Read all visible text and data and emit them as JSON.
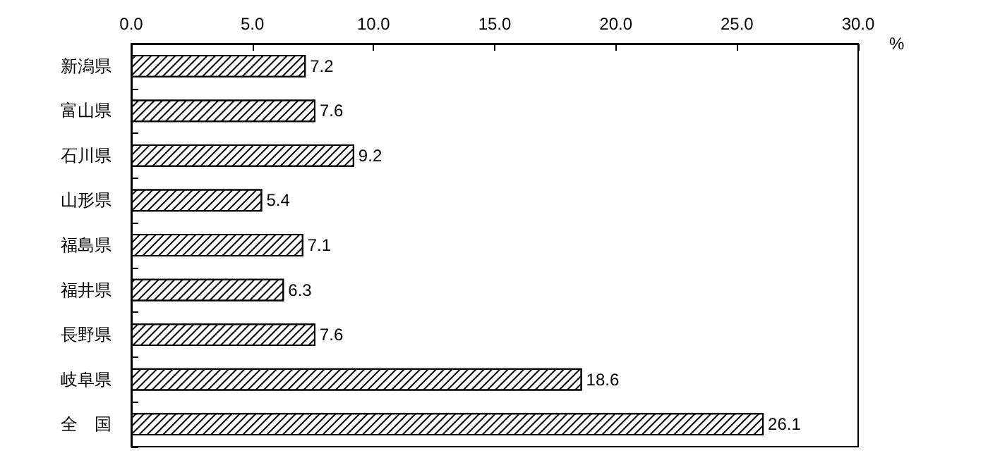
{
  "chart_data": {
    "type": "bar",
    "orientation": "horizontal",
    "xlabel": "%",
    "categories": [
      "新潟県",
      "富山県",
      "石川県",
      "山形県",
      "福島県",
      "福井県",
      "長野県",
      "岐阜県",
      "全　国"
    ],
    "values": [
      7.2,
      7.6,
      9.2,
      5.4,
      7.1,
      6.3,
      7.6,
      18.6,
      26.1
    ],
    "color": "#000000",
    "xlim": [
      0,
      30
    ],
    "xticks": [
      {
        "value": 0,
        "label": "0.0"
      },
      {
        "value": 5,
        "label": "5.0"
      },
      {
        "value": 10,
        "label": "10.0"
      },
      {
        "value": 15,
        "label": "15.0"
      },
      {
        "value": 20,
        "label": "20.0"
      },
      {
        "value": 25,
        "label": "25.0"
      },
      {
        "value": 30,
        "label": "30.0"
      }
    ],
    "data_labels": true,
    "grid": false
  }
}
